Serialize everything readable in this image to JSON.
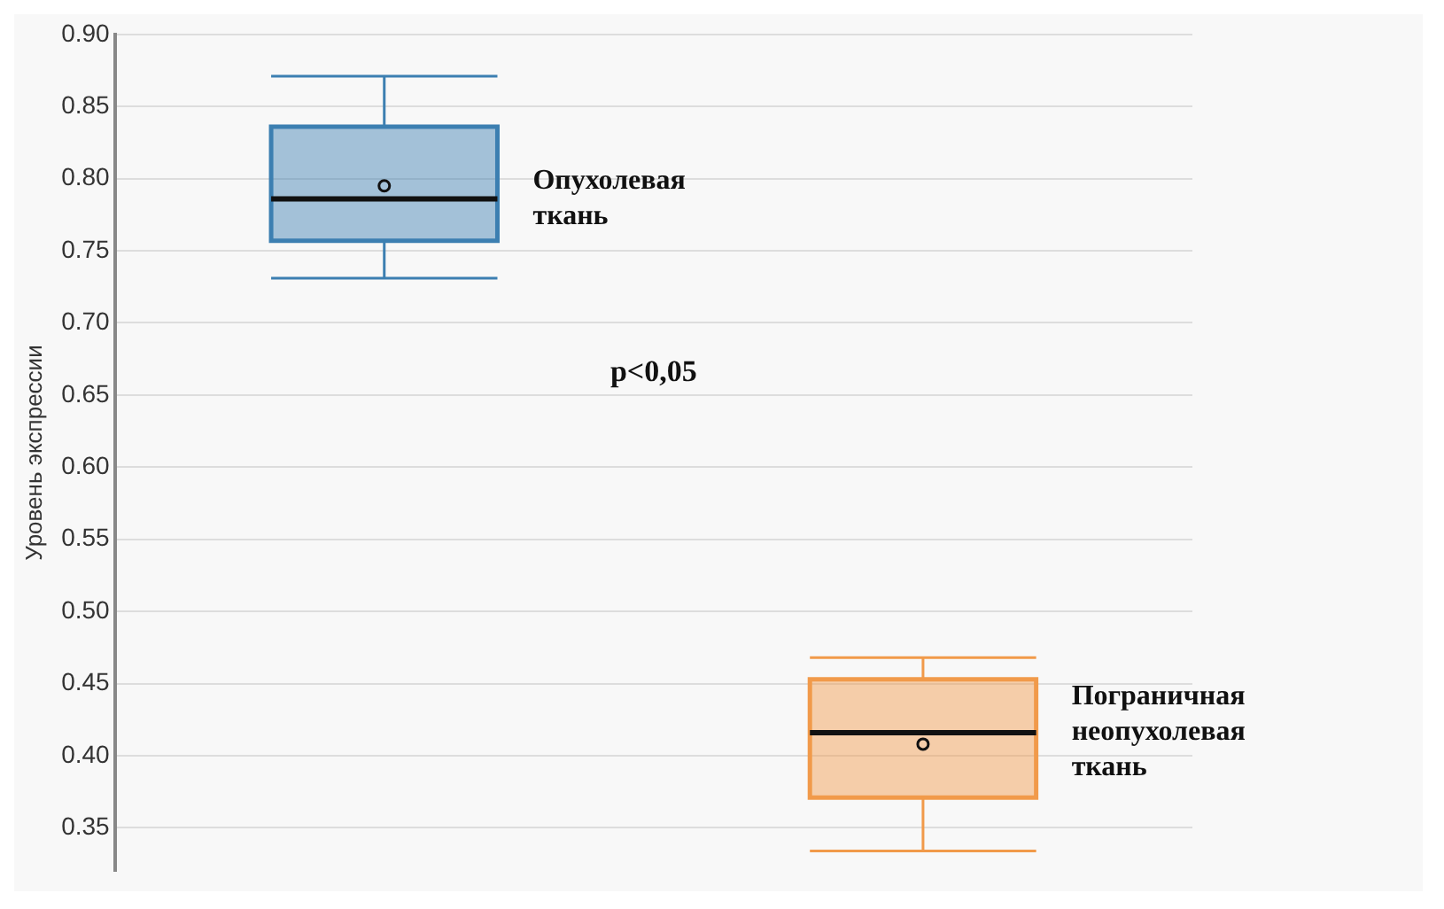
{
  "chart_data": {
    "type": "box",
    "ylabel": "Уровень экспрессии",
    "categories": [
      null,
      null
    ],
    "series": [
      {
        "name": "Опухолевая ткань",
        "color": "#3c7fb1",
        "boxes": [
          {
            "low": 0.731,
            "q1": 0.757,
            "median": 0.786,
            "q3": 0.836,
            "high": 0.871,
            "mean": 0.795
          },
          null
        ]
      },
      {
        "name": "Пограничная неопухолевая ткань",
        "color": "#f19a4a",
        "boxes": [
          null,
          {
            "low": 0.334,
            "q1": 0.371,
            "median": 0.416,
            "q3": 0.453,
            "high": 0.468,
            "mean": 0.408
          }
        ]
      }
    ],
    "ylim": [
      0.32,
      0.9
    ],
    "yticks": [
      0.35,
      {
        "value": 0.4,
        "label": "0.40"
      },
      0.45,
      {
        "value": 0.5,
        "label": "0.50"
      },
      0.55,
      {
        "value": 0.6,
        "label": "0.60"
      },
      0.65,
      {
        "value": 0.7,
        "label": "0.70"
      },
      0.75,
      {
        "value": 0.8,
        "label": "0.80"
      },
      0.85,
      {
        "value": 0.9,
        "label": "0.90"
      }
    ],
    "grid": "y",
    "legend": false,
    "annotations": [
      "p<0,05"
    ]
  }
}
